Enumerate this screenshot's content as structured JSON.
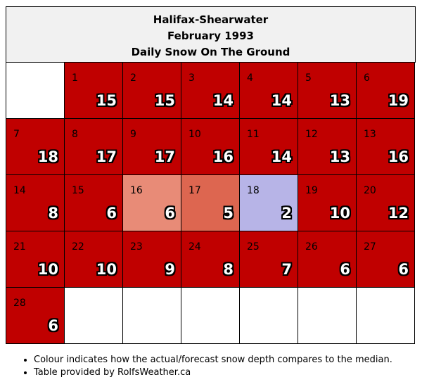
{
  "header": {
    "station": "Halifax-Shearwater",
    "period": "February 1993",
    "metric": "Daily Snow On The Ground"
  },
  "colors": {
    "well_above_median": "#c00000",
    "above_median": "#e88b77",
    "slightly_above_median": "#dd6650",
    "below_median": "#b7b4e7",
    "empty": "#ffffff"
  },
  "calendar": {
    "leading_blank_days": 1,
    "days": [
      {
        "day": "1",
        "value": "15",
        "color": "dark"
      },
      {
        "day": "2",
        "value": "15",
        "color": "dark"
      },
      {
        "day": "3",
        "value": "14",
        "color": "dark"
      },
      {
        "day": "4",
        "value": "14",
        "color": "dark"
      },
      {
        "day": "5",
        "value": "13",
        "color": "dark"
      },
      {
        "day": "6",
        "value": "19",
        "color": "dark"
      },
      {
        "day": "7",
        "value": "18",
        "color": "dark"
      },
      {
        "day": "8",
        "value": "17",
        "color": "dark"
      },
      {
        "day": "9",
        "value": "17",
        "color": "dark"
      },
      {
        "day": "10",
        "value": "16",
        "color": "dark"
      },
      {
        "day": "11",
        "value": "14",
        "color": "dark"
      },
      {
        "day": "12",
        "value": "13",
        "color": "dark"
      },
      {
        "day": "13",
        "value": "16",
        "color": "dark"
      },
      {
        "day": "14",
        "value": "8",
        "color": "dark"
      },
      {
        "day": "15",
        "value": "6",
        "color": "dark"
      },
      {
        "day": "16",
        "value": "6",
        "color": "pink"
      },
      {
        "day": "17",
        "value": "5",
        "color": "salmon"
      },
      {
        "day": "18",
        "value": "2",
        "color": "lav"
      },
      {
        "day": "19",
        "value": "10",
        "color": "dark"
      },
      {
        "day": "20",
        "value": "12",
        "color": "dark"
      },
      {
        "day": "21",
        "value": "10",
        "color": "dark"
      },
      {
        "day": "22",
        "value": "10",
        "color": "dark"
      },
      {
        "day": "23",
        "value": "9",
        "color": "dark"
      },
      {
        "day": "24",
        "value": "8",
        "color": "dark"
      },
      {
        "day": "25",
        "value": "7",
        "color": "dark"
      },
      {
        "day": "26",
        "value": "6",
        "color": "dark"
      },
      {
        "day": "27",
        "value": "6",
        "color": "dark"
      },
      {
        "day": "28",
        "value": "6",
        "color": "dark"
      }
    ],
    "trailing_blank_days": 6
  },
  "notes": [
    "Colour indicates how the actual/forecast snow depth compares to the median.",
    "Table provided by RolfsWeather.ca"
  ]
}
